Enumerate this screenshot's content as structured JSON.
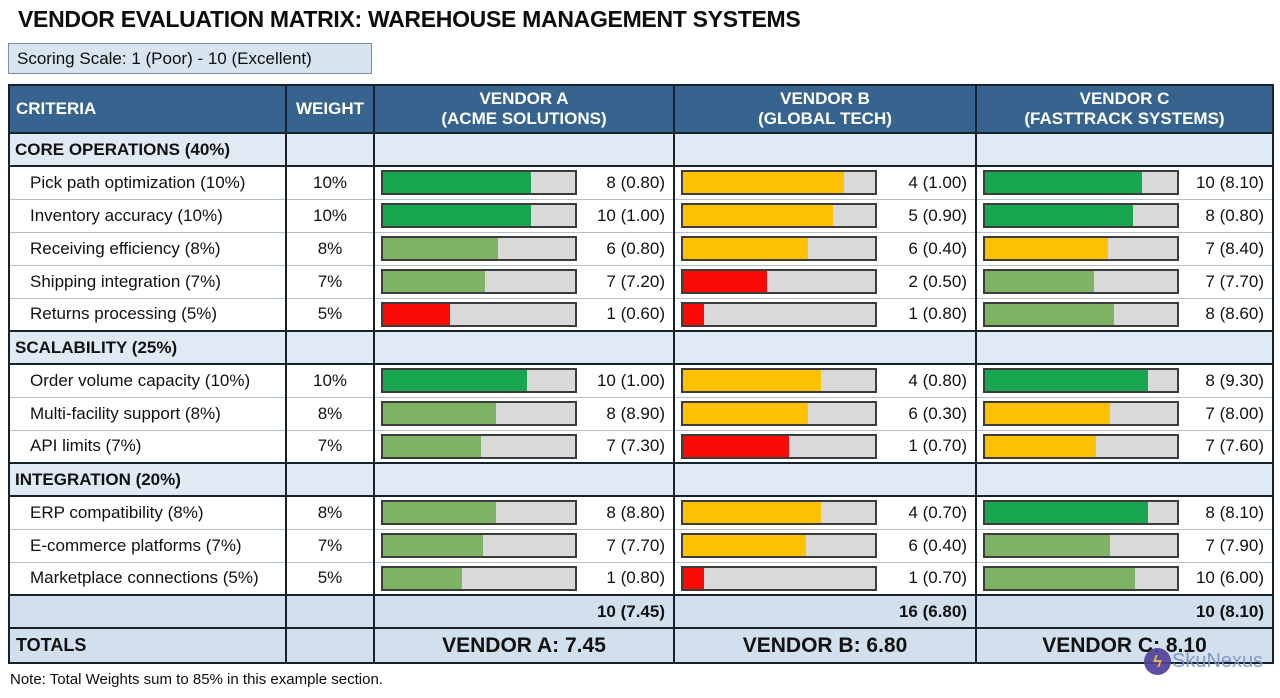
{
  "title": "VENDOR EVALUATION MATRIX: WAREHOUSE MANAGEMENT SYSTEMS",
  "scale_note": "Scoring Scale: 1 (Poor) - 10 (Excellent)",
  "footnote": "Note: Total Weights sum to 85% in this example section.",
  "watermark": {
    "text": "SkuNexus",
    "logo_glyph": "ϟ"
  },
  "colors": {
    "header_bg": "#36648f",
    "section_bg": "#e0eaf4",
    "total_bg": "#d2e0ee",
    "bar_track": "#d9d9d9",
    "green_high": "#18a750",
    "green_mid": "#7db463",
    "yellow": "#fec002",
    "red": "#fb0a05"
  },
  "table": {
    "headers": {
      "criteria": "CRITERIA",
      "weight": "WEIGHT"
    },
    "vendors": [
      {
        "name": "VENDOR A",
        "subname": "(ACME SOLUTIONS)"
      },
      {
        "name": "VENDOR B",
        "subname": "(GLOBAL TECH)"
      },
      {
        "name": "VENDOR C",
        "subname": "(FASTTRACK SYSTEMS)"
      }
    ],
    "sections": [
      {
        "label": "CORE OPERATIONS (40%)",
        "rows": [
          {
            "criteria": "Pick path optimization (10%)",
            "weight": "10%",
            "cells": [
              {
                "text": "8 (0.80)",
                "fill": 77,
                "color": "green_high"
              },
              {
                "text": "4 (1.00)",
                "fill": 84,
                "color": "yellow"
              },
              {
                "text": "10 (8.10)",
                "fill": 82,
                "color": "green_high"
              }
            ]
          },
          {
            "criteria": "Inventory accuracy (10%)",
            "weight": "10%",
            "cells": [
              {
                "text": "10 (1.00)",
                "fill": 77,
                "color": "green_high"
              },
              {
                "text": "5 (0.90)",
                "fill": 78,
                "color": "yellow"
              },
              {
                "text": "8 (0.80)",
                "fill": 77,
                "color": "green_high"
              }
            ]
          },
          {
            "criteria": "Receiving efficiency (8%)",
            "weight": "8%",
            "cells": [
              {
                "text": "6 (0.80)",
                "fill": 60,
                "color": "green_mid"
              },
              {
                "text": "6 (0.40)",
                "fill": 65,
                "color": "yellow"
              },
              {
                "text": "7 (8.40)",
                "fill": 64,
                "color": "yellow"
              }
            ]
          },
          {
            "criteria": "Shipping integration (7%)",
            "weight": "7%",
            "cells": [
              {
                "text": "7 (7.20)",
                "fill": 53,
                "color": "green_mid"
              },
              {
                "text": "2 (0.50)",
                "fill": 44,
                "color": "red"
              },
              {
                "text": "7 (7.70)",
                "fill": 57,
                "color": "green_mid"
              }
            ]
          },
          {
            "criteria": "Returns processing (5%)",
            "weight": "5%",
            "cells": [
              {
                "text": "1 (0.60)",
                "fill": 35,
                "color": "red"
              },
              {
                "text": "1 (0.80)",
                "fill": 11,
                "color": "red"
              },
              {
                "text": "8 (8.60)",
                "fill": 67,
                "color": "green_mid"
              }
            ]
          }
        ]
      },
      {
        "label": "SCALABILITY (25%)",
        "rows": [
          {
            "criteria": "Order volume capacity (10%)",
            "weight": "10%",
            "cells": [
              {
                "text": "10 (1.00)",
                "fill": 75,
                "color": "green_high"
              },
              {
                "text": "4 (0.80)",
                "fill": 72,
                "color": "yellow"
              },
              {
                "text": "8 (9.30)",
                "fill": 85,
                "color": "green_high"
              }
            ]
          },
          {
            "criteria": "Multi-facility support (8%)",
            "weight": "8%",
            "cells": [
              {
                "text": "8 (8.90)",
                "fill": 59,
                "color": "green_mid"
              },
              {
                "text": "6 (0.30)",
                "fill": 65,
                "color": "yellow"
              },
              {
                "text": "7 (8.00)",
                "fill": 65,
                "color": "yellow"
              }
            ]
          },
          {
            "criteria": "API limits (7%)",
            "weight": "7%",
            "cells": [
              {
                "text": "7 (7.30)",
                "fill": 51,
                "color": "green_mid"
              },
              {
                "text": "1 (0.70)",
                "fill": 55,
                "color": "red"
              },
              {
                "text": "7 (7.60)",
                "fill": 58,
                "color": "yellow"
              }
            ]
          }
        ]
      },
      {
        "label": "INTEGRATION (20%)",
        "rows": [
          {
            "criteria": "ERP compatibility (8%)",
            "weight": "8%",
            "cells": [
              {
                "text": "8 (8.80)",
                "fill": 59,
                "color": "green_mid"
              },
              {
                "text": "4 (0.70)",
                "fill": 72,
                "color": "yellow"
              },
              {
                "text": "8 (8.10)",
                "fill": 85,
                "color": "green_high"
              }
            ]
          },
          {
            "criteria": "E-commerce platforms (7%)",
            "weight": "7%",
            "cells": [
              {
                "text": "7 (7.70)",
                "fill": 52,
                "color": "green_mid"
              },
              {
                "text": "6 (0.40)",
                "fill": 64,
                "color": "yellow"
              },
              {
                "text": "7 (7.90)",
                "fill": 65,
                "color": "green_mid"
              }
            ]
          },
          {
            "criteria": "Marketplace connections (5%)",
            "weight": "5%",
            "cells": [
              {
                "text": "1 (0.80)",
                "fill": 41,
                "color": "green_mid"
              },
              {
                "text": "1 (0.70)",
                "fill": 11,
                "color": "red"
              },
              {
                "text": "10 (6.00)",
                "fill": 78,
                "color": "green_mid"
              }
            ]
          }
        ]
      }
    ],
    "subtotals": [
      "10 (7.45)",
      "16 (6.80)",
      "10 (8.10)"
    ],
    "totals": {
      "label": "TOTALS",
      "values": [
        "VENDOR A: 7.45",
        "VENDOR B: 6.80",
        "VENDOR C: 8.10"
      ]
    }
  }
}
